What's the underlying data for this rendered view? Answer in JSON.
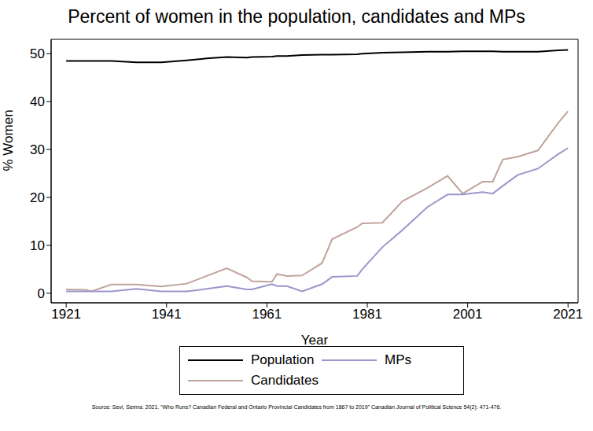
{
  "chart_data": {
    "type": "line",
    "title": "Percent of women in the population, candidates and MPs",
    "x_label": "Year",
    "y_label": "% Women",
    "source": "Source: Sevi, Semra. 2021. “Who Runs? Canadian Federal and Ontario Provincial Candidates from 1867 to 2019” Canadian Journal of Political Science 54(2): 471-476.",
    "x": [
      1921,
      1925,
      1926,
      1930,
      1935,
      1940,
      1945,
      1949,
      1953,
      1957,
      1958,
      1962,
      1963,
      1965,
      1968,
      1972,
      1974,
      1979,
      1980,
      1984,
      1988,
      1993,
      1997,
      2000,
      2004,
      2006,
      2008,
      2011,
      2015,
      2019,
      2021
    ],
    "series": [
      {
        "name": "Population",
        "color": "#000000",
        "values": [
          48.5,
          48.5,
          48.5,
          48.5,
          48.2,
          48.2,
          48.6,
          49.0,
          49.3,
          49.2,
          49.3,
          49.4,
          49.5,
          49.5,
          49.7,
          49.8,
          49.8,
          49.9,
          50.0,
          50.2,
          50.3,
          50.4,
          50.4,
          50.5,
          50.5,
          50.5,
          50.4,
          50.4,
          50.4,
          50.7,
          50.8
        ]
      },
      {
        "name": "Candidates",
        "color": "#bfa49b",
        "values": [
          0.8,
          0.7,
          0.4,
          1.8,
          1.8,
          1.4,
          2.0,
          3.6,
          5.2,
          3.3,
          2.5,
          2.4,
          4.0,
          3.6,
          3.7,
          6.3,
          11.3,
          13.8,
          14.6,
          14.7,
          19.2,
          22.0,
          24.5,
          20.8,
          23.3,
          23.3,
          27.9,
          28.5,
          29.8,
          35.5,
          38.0
        ]
      },
      {
        "name": "MPs",
        "color": "#9d95cb",
        "values": [
          0.4,
          0.4,
          0.4,
          0.4,
          0.9,
          0.4,
          0.4,
          0.9,
          1.5,
          0.8,
          0.8,
          1.9,
          1.5,
          1.5,
          0.4,
          1.9,
          3.4,
          3.6,
          5.0,
          9.6,
          13.2,
          18.0,
          20.6,
          20.6,
          21.1,
          20.8,
          22.4,
          24.7,
          26.0,
          29.0,
          30.3
        ]
      }
    ],
    "xlim": [
      1918,
      2023
    ],
    "xticks": [
      1921,
      1941,
      1961,
      1981,
      2001,
      2021
    ],
    "ylim": [
      -2,
      53
    ],
    "yticks": [
      0,
      10,
      20,
      30,
      40,
      50
    ],
    "grid": false,
    "legend": "bottom"
  }
}
